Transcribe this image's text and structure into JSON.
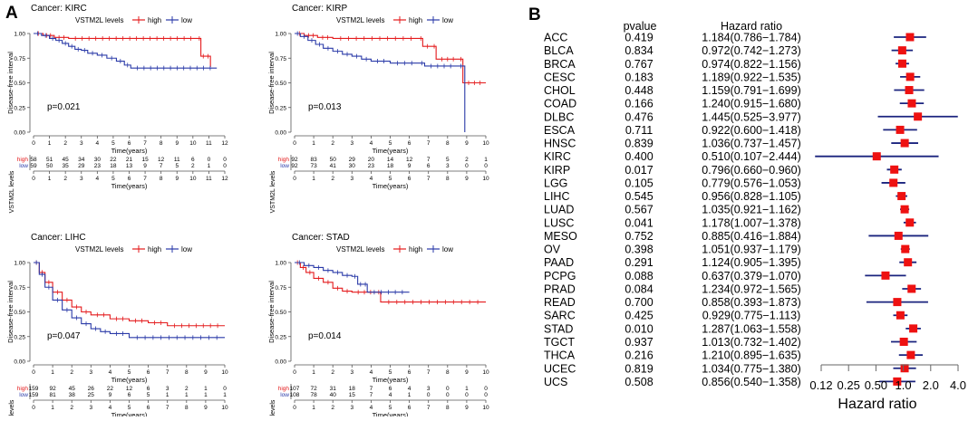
{
  "panel_labels": {
    "a": "A",
    "b": "B"
  },
  "colors": {
    "high": "#e41a1c",
    "low": "#2a3aa8",
    "forest_line": "#1a237e",
    "forest_box": "#ee1111",
    "axis": "#555555",
    "text": "#000000"
  },
  "km_common": {
    "legend_title": "VSTM2L levels",
    "legend_high": "high",
    "legend_low": "low",
    "ylabel": "Disease-free interval",
    "xlabel": "Time(years)",
    "risk_ylabel": "VSTM2L levels",
    "y_ticks": [
      "0.00",
      "0.25",
      "0.50",
      "0.75",
      "1.00"
    ]
  },
  "chart_data": [
    {
      "type": "line",
      "title": "Cancer: KIRC",
      "pvalue": "p=0.021",
      "x_ticks": [
        0,
        1,
        2,
        3,
        4,
        5,
        6,
        7,
        8,
        9,
        10,
        11,
        12
      ],
      "xlim": [
        0,
        12
      ],
      "ylim": [
        0,
        1
      ],
      "series": [
        {
          "name": "high",
          "points": [
            [
              0,
              1
            ],
            [
              0.6,
              0.98
            ],
            [
              1.3,
              0.96
            ],
            [
              2.2,
              0.95
            ],
            [
              10.3,
              0.95
            ],
            [
              10.5,
              0.77
            ],
            [
              10.8,
              0.77
            ],
            [
              11.1,
              0.66
            ]
          ]
        },
        {
          "name": "low",
          "points": [
            [
              0,
              1
            ],
            [
              0.5,
              0.98
            ],
            [
              1.0,
              0.95
            ],
            [
              1.4,
              0.93
            ],
            [
              1.8,
              0.9
            ],
            [
              2.2,
              0.87
            ],
            [
              2.6,
              0.84
            ],
            [
              3.0,
              0.83
            ],
            [
              3.4,
              0.8
            ],
            [
              4.0,
              0.78
            ],
            [
              4.6,
              0.75
            ],
            [
              5.2,
              0.72
            ],
            [
              5.7,
              0.68
            ],
            [
              6.1,
              0.65
            ],
            [
              11.5,
              0.65
            ]
          ]
        }
      ],
      "risk": {
        "high": [
          "58",
          "51",
          "45",
          "34",
          "30",
          "22",
          "21",
          "15",
          "12",
          "11",
          "6",
          "0",
          "0"
        ],
        "low": [
          "59",
          "50",
          "35",
          "29",
          "23",
          "18",
          "13",
          "9",
          "7",
          "5",
          "2",
          "1",
          "0"
        ]
      }
    },
    {
      "type": "line",
      "title": "Cancer: KIRP",
      "pvalue": "p=0.013",
      "x_ticks": [
        0,
        1,
        2,
        3,
        4,
        5,
        6,
        7,
        8,
        9,
        10
      ],
      "xlim": [
        0,
        10
      ],
      "ylim": [
        0,
        1
      ],
      "series": [
        {
          "name": "high",
          "points": [
            [
              0,
              1
            ],
            [
              0.5,
              0.98
            ],
            [
              1.2,
              0.96
            ],
            [
              2.0,
              0.95
            ],
            [
              6.5,
              0.95
            ],
            [
              6.7,
              0.87
            ],
            [
              7.2,
              0.87
            ],
            [
              7.4,
              0.74
            ],
            [
              8.6,
              0.74
            ],
            [
              8.8,
              0.5
            ],
            [
              10,
              0.5
            ]
          ]
        },
        {
          "name": "low",
          "points": [
            [
              0,
              1
            ],
            [
              0.3,
              0.97
            ],
            [
              0.7,
              0.93
            ],
            [
              1.1,
              0.89
            ],
            [
              1.5,
              0.85
            ],
            [
              2.0,
              0.82
            ],
            [
              2.5,
              0.79
            ],
            [
              3.0,
              0.77
            ],
            [
              3.5,
              0.74
            ],
            [
              4.0,
              0.72
            ],
            [
              5.0,
              0.7
            ],
            [
              6.5,
              0.7
            ],
            [
              6.8,
              0.67
            ],
            [
              8.5,
              0.67
            ],
            [
              8.9,
              0.0
            ]
          ]
        }
      ],
      "risk": {
        "high": [
          "92",
          "83",
          "50",
          "29",
          "20",
          "14",
          "12",
          "7",
          "5",
          "2",
          "1"
        ],
        "low": [
          "92",
          "73",
          "41",
          "30",
          "23",
          "18",
          "9",
          "6",
          "3",
          "0",
          "0"
        ]
      }
    },
    {
      "type": "line",
      "title": "Cancer: LIHC",
      "pvalue": "p=0.047",
      "x_ticks": [
        0,
        1,
        2,
        3,
        4,
        5,
        6,
        7,
        8,
        9,
        10
      ],
      "xlim": [
        0,
        10
      ],
      "ylim": [
        0,
        1
      ],
      "series": [
        {
          "name": "high",
          "points": [
            [
              0,
              1
            ],
            [
              0.3,
              0.9
            ],
            [
              0.6,
              0.8
            ],
            [
              1.0,
              0.7
            ],
            [
              1.5,
              0.62
            ],
            [
              2.0,
              0.55
            ],
            [
              2.5,
              0.5
            ],
            [
              3.0,
              0.47
            ],
            [
              4.0,
              0.43
            ],
            [
              5.0,
              0.41
            ],
            [
              6.0,
              0.39
            ],
            [
              7.0,
              0.36
            ],
            [
              10,
              0.36
            ]
          ]
        },
        {
          "name": "low",
          "points": [
            [
              0,
              1
            ],
            [
              0.3,
              0.88
            ],
            [
              0.6,
              0.75
            ],
            [
              1.0,
              0.62
            ],
            [
              1.5,
              0.52
            ],
            [
              2.0,
              0.44
            ],
            [
              2.5,
              0.38
            ],
            [
              3.0,
              0.33
            ],
            [
              3.5,
              0.3
            ],
            [
              4.0,
              0.28
            ],
            [
              5.0,
              0.24
            ],
            [
              10,
              0.24
            ]
          ]
        }
      ],
      "risk": {
        "high": [
          "159",
          "92",
          "45",
          "26",
          "22",
          "12",
          "6",
          "3",
          "2",
          "1",
          "0"
        ],
        "low": [
          "159",
          "81",
          "38",
          "25",
          "9",
          "6",
          "5",
          "1",
          "1",
          "1",
          "1"
        ]
      }
    },
    {
      "type": "line",
      "title": "Cancer: STAD",
      "pvalue": "p=0.014",
      "x_ticks": [
        0,
        1,
        2,
        3,
        4,
        5,
        6,
        7,
        8,
        9,
        10
      ],
      "xlim": [
        0,
        10
      ],
      "ylim": [
        0,
        1
      ],
      "series": [
        {
          "name": "high",
          "points": [
            [
              0,
              1
            ],
            [
              0.3,
              0.95
            ],
            [
              0.6,
              0.9
            ],
            [
              1.0,
              0.84
            ],
            [
              1.5,
              0.8
            ],
            [
              2.0,
              0.74
            ],
            [
              2.5,
              0.71
            ],
            [
              3.0,
              0.7
            ],
            [
              4.3,
              0.7
            ],
            [
              4.5,
              0.6
            ],
            [
              10,
              0.6
            ]
          ]
        },
        {
          "name": "low",
          "points": [
            [
              0,
              1
            ],
            [
              0.5,
              0.97
            ],
            [
              1.0,
              0.95
            ],
            [
              1.5,
              0.92
            ],
            [
              2.0,
              0.9
            ],
            [
              2.5,
              0.87
            ],
            [
              3.0,
              0.86
            ],
            [
              3.3,
              0.78
            ],
            [
              3.6,
              0.78
            ],
            [
              3.8,
              0.7
            ],
            [
              6.0,
              0.7
            ]
          ]
        }
      ],
      "risk": {
        "high": [
          "107",
          "72",
          "31",
          "18",
          "7",
          "6",
          "4",
          "3",
          "0",
          "1",
          "0"
        ],
        "low": [
          "108",
          "78",
          "40",
          "15",
          "7",
          "4",
          "1",
          "0",
          "0",
          "0",
          "0"
        ]
      }
    },
    {
      "type": "forest",
      "headers": {
        "pvalue": "pvalue",
        "hr": "Hazard ratio"
      },
      "xlabel": "Hazard ratio",
      "x_ticks": [
        "0.12",
        "0.25",
        "0.50",
        "1.0",
        "2.0",
        "4.0"
      ],
      "x_tick_values": [
        0.125,
        0.25,
        0.5,
        1.0,
        2.0,
        4.0
      ],
      "rows": [
        {
          "cancer": "ACC",
          "pvalue": "0.419",
          "hr_text": "1.184(0.786−1.784)",
          "hr": 1.184,
          "lo": 0.786,
          "hi": 1.784
        },
        {
          "cancer": "BLCA",
          "pvalue": "0.834",
          "hr_text": "0.972(0.742−1.273)",
          "hr": 0.972,
          "lo": 0.742,
          "hi": 1.273
        },
        {
          "cancer": "BRCA",
          "pvalue": "0.767",
          "hr_text": "0.974(0.822−1.156)",
          "hr": 0.974,
          "lo": 0.822,
          "hi": 1.156
        },
        {
          "cancer": "CESC",
          "pvalue": "0.183",
          "hr_text": "1.189(0.922−1.535)",
          "hr": 1.189,
          "lo": 0.922,
          "hi": 1.535
        },
        {
          "cancer": "CHOL",
          "pvalue": "0.448",
          "hr_text": "1.159(0.791−1.699)",
          "hr": 1.159,
          "lo": 0.791,
          "hi": 1.699
        },
        {
          "cancer": "COAD",
          "pvalue": "0.166",
          "hr_text": "1.240(0.915−1.680)",
          "hr": 1.24,
          "lo": 0.915,
          "hi": 1.68
        },
        {
          "cancer": "DLBC",
          "pvalue": "0.476",
          "hr_text": "1.445(0.525−3.977)",
          "hr": 1.445,
          "lo": 0.525,
          "hi": 3.977
        },
        {
          "cancer": "ESCA",
          "pvalue": "0.711",
          "hr_text": "0.922(0.600−1.418)",
          "hr": 0.922,
          "lo": 0.6,
          "hi": 1.418
        },
        {
          "cancer": "HNSC",
          "pvalue": "0.839",
          "hr_text": "1.036(0.737−1.457)",
          "hr": 1.036,
          "lo": 0.737,
          "hi": 1.457
        },
        {
          "cancer": "KIRC",
          "pvalue": "0.400",
          "hr_text": "0.510(0.107−2.444)",
          "hr": 0.51,
          "lo": 0.107,
          "hi": 2.444
        },
        {
          "cancer": "KIRP",
          "pvalue": "0.017",
          "hr_text": "0.796(0.660−0.960)",
          "hr": 0.796,
          "lo": 0.66,
          "hi": 0.96
        },
        {
          "cancer": "LGG",
          "pvalue": "0.105",
          "hr_text": "0.779(0.576−1.053)",
          "hr": 0.779,
          "lo": 0.576,
          "hi": 1.053
        },
        {
          "cancer": "LIHC",
          "pvalue": "0.545",
          "hr_text": "0.956(0.828−1.105)",
          "hr": 0.956,
          "lo": 0.828,
          "hi": 1.105
        },
        {
          "cancer": "LUAD",
          "pvalue": "0.567",
          "hr_text": "1.035(0.921−1.162)",
          "hr": 1.035,
          "lo": 0.921,
          "hi": 1.162
        },
        {
          "cancer": "LUSC",
          "pvalue": "0.041",
          "hr_text": "1.178(1.007−1.378)",
          "hr": 1.178,
          "lo": 1.007,
          "hi": 1.378
        },
        {
          "cancer": "MESO",
          "pvalue": "0.752",
          "hr_text": "0.885(0.416−1.884)",
          "hr": 0.885,
          "lo": 0.416,
          "hi": 1.884
        },
        {
          "cancer": "OV",
          "pvalue": "0.398",
          "hr_text": "1.051(0.937−1.179)",
          "hr": 1.051,
          "lo": 0.937,
          "hi": 1.179
        },
        {
          "cancer": "PAAD",
          "pvalue": "0.291",
          "hr_text": "1.124(0.905−1.395)",
          "hr": 1.124,
          "lo": 0.905,
          "hi": 1.395
        },
        {
          "cancer": "PCPG",
          "pvalue": "0.088",
          "hr_text": "0.637(0.379−1.070)",
          "hr": 0.637,
          "lo": 0.379,
          "hi": 1.07
        },
        {
          "cancer": "PRAD",
          "pvalue": "0.084",
          "hr_text": "1.234(0.972−1.565)",
          "hr": 1.234,
          "lo": 0.972,
          "hi": 1.565
        },
        {
          "cancer": "READ",
          "pvalue": "0.700",
          "hr_text": "0.858(0.393−1.873)",
          "hr": 0.858,
          "lo": 0.393,
          "hi": 1.873
        },
        {
          "cancer": "SARC",
          "pvalue": "0.425",
          "hr_text": "0.929(0.775−1.113)",
          "hr": 0.929,
          "lo": 0.775,
          "hi": 1.113
        },
        {
          "cancer": "STAD",
          "pvalue": "0.010",
          "hr_text": "1.287(1.063−1.558)",
          "hr": 1.287,
          "lo": 1.063,
          "hi": 1.558
        },
        {
          "cancer": "TGCT",
          "pvalue": "0.937",
          "hr_text": "1.013(0.732−1.402)",
          "hr": 1.013,
          "lo": 0.732,
          "hi": 1.402
        },
        {
          "cancer": "THCA",
          "pvalue": "0.216",
          "hr_text": "1.210(0.895−1.635)",
          "hr": 1.21,
          "lo": 0.895,
          "hi": 1.635
        },
        {
          "cancer": "UCEC",
          "pvalue": "0.819",
          "hr_text": "1.034(0.775−1.380)",
          "hr": 1.034,
          "lo": 0.775,
          "hi": 1.38
        },
        {
          "cancer": "UCS",
          "pvalue": "0.508",
          "hr_text": "0.856(0.540−1.358)",
          "hr": 0.856,
          "lo": 0.54,
          "hi": 1.358
        }
      ]
    }
  ]
}
